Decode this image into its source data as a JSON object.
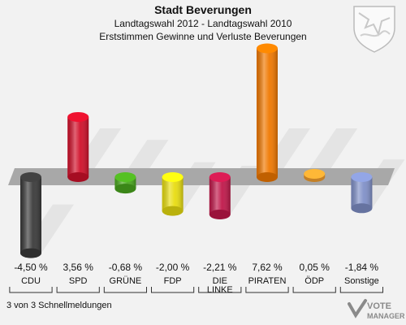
{
  "header": {
    "title": "Stadt Beverungen",
    "subtitle": "Landtagswahl 2012 - Landtagswahl 2010",
    "subtitle2": "Erststimmen Gewinne und Verluste Beverungen"
  },
  "footer": {
    "text": "3 von 3 Schnellmeldungen"
  },
  "logo": {
    "line1": "VOTE",
    "line2": "MANAGER"
  },
  "chart_data": {
    "type": "bar",
    "title": "Stadt Beverungen",
    "subtitle": "Landtagswahl 2012 - Landtagswahl 2010",
    "categories": [
      "CDU",
      "SPD",
      "GRÜNE",
      "FDP",
      "DIE LINKE",
      "PIRATEN",
      "ÖDP",
      "Sonstige"
    ],
    "values": [
      -4.5,
      3.56,
      -0.68,
      -2.0,
      -2.21,
      7.62,
      0.05,
      -1.84
    ],
    "value_labels": [
      "-4,50 %",
      "3,56 %",
      "-0,68 %",
      "-2,00 %",
      "-2,21 %",
      "7,62 %",
      "0,05 %",
      "-1,84 %"
    ],
    "colors": [
      "#3a3a3a",
      "#d0102a",
      "#4aa81e",
      "#e8dd10",
      "#c0184a",
      "#f07800",
      "#f5a030",
      "#8090c8"
    ],
    "ylim": [
      -4.5,
      7.62
    ]
  }
}
